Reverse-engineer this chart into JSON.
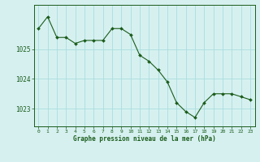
{
  "hours": [
    0,
    1,
    2,
    3,
    4,
    5,
    6,
    7,
    8,
    9,
    10,
    11,
    12,
    13,
    14,
    15,
    16,
    17,
    18,
    19,
    20,
    21,
    22,
    23
  ],
  "pressure": [
    1025.7,
    1026.1,
    1025.4,
    1025.4,
    1025.2,
    1025.3,
    1025.3,
    1025.3,
    1025.7,
    1025.7,
    1025.5,
    1024.8,
    1024.6,
    1024.3,
    1023.9,
    1023.2,
    1022.9,
    1022.7,
    1023.2,
    1023.5,
    1023.5,
    1023.5,
    1023.4,
    1023.3
  ],
  "bg_color": "#d6f0f0",
  "line_color": "#1a5c1a",
  "marker_color": "#1a5c1a",
  "grid_color": "#aadddd",
  "ylabel_ticks": [
    1023,
    1024,
    1025
  ],
  "xlabel": "Graphe pression niveau de la mer (hPa)",
  "ylim_min": 1022.4,
  "ylim_max": 1026.5,
  "xlim_min": -0.5,
  "xlim_max": 23.5
}
